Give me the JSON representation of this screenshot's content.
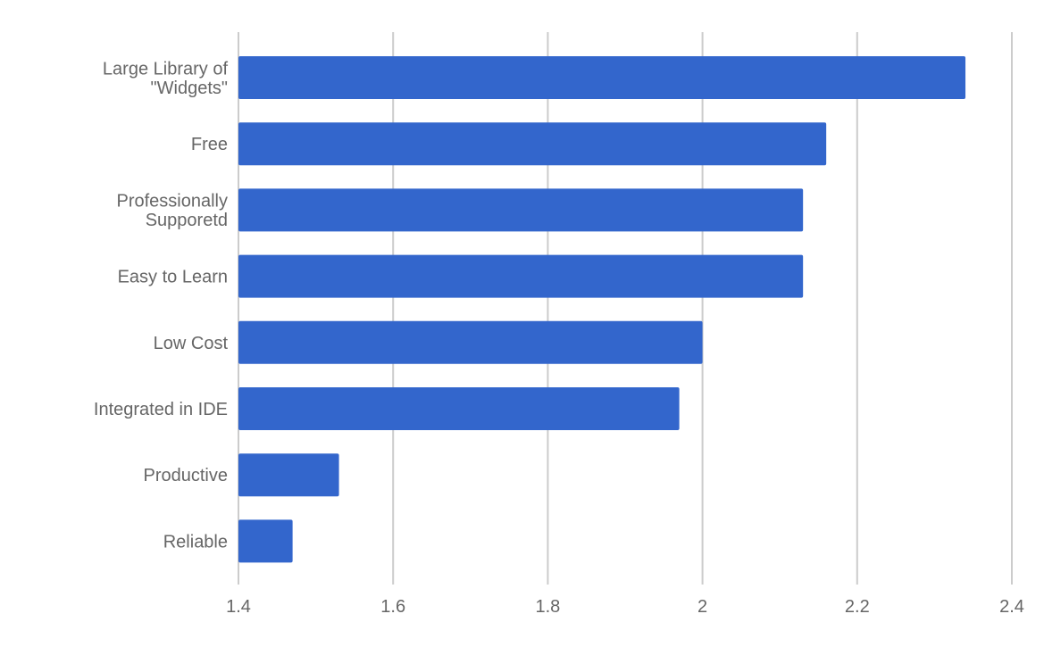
{
  "colors": {
    "bar": "#3366cc",
    "grid": "#cccccc",
    "label": "#666666",
    "background": "#ffffff"
  },
  "chart_data": {
    "type": "bar",
    "orientation": "horizontal",
    "title": "",
    "xlabel": "",
    "ylabel": "",
    "categories": [
      "Large Library of \"Widgets\"",
      "Free",
      "Professionally Supporetd",
      "Easy to Learn",
      "Low Cost",
      "Integrated in IDE",
      "Productive",
      "Reliable"
    ],
    "category_lines": [
      [
        "Large Library of",
        "\"Widgets\""
      ],
      [
        "Free"
      ],
      [
        "Professionally",
        "Supporetd"
      ],
      [
        "Easy to Learn"
      ],
      [
        "Low Cost"
      ],
      [
        "Integrated in IDE"
      ],
      [
        "Productive"
      ],
      [
        "Reliable"
      ]
    ],
    "values": [
      2.34,
      2.16,
      2.13,
      2.13,
      2.0,
      1.97,
      1.53,
      1.47
    ],
    "xlim": [
      1.4,
      2.4
    ],
    "x_ticks": [
      "1.4",
      "1.6",
      "1.8",
      "2",
      "2.2",
      "2.4"
    ],
    "grid": true,
    "legend": "none"
  }
}
